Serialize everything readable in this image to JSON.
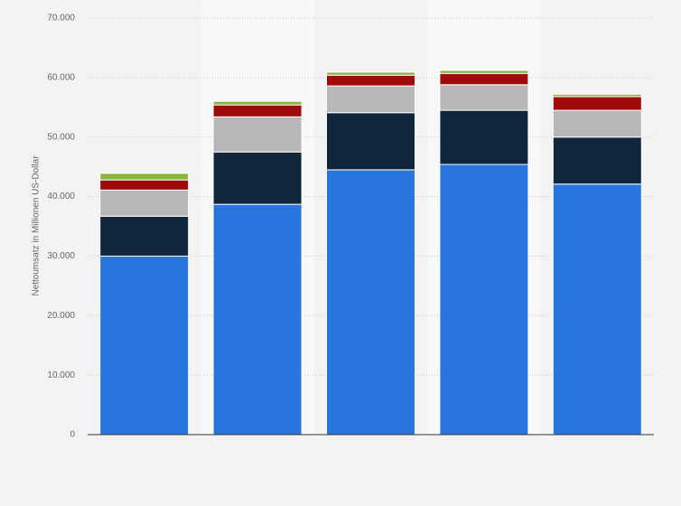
{
  "chart_data": {
    "type": "stacked-bar",
    "y_label": "Nettoumsatz in Millionen US-Dollar",
    "categories": [
      null,
      null,
      null,
      null,
      null
    ],
    "series": [
      {
        "color": "#2876dd",
        "values": [
          30000,
          38700,
          44500,
          45400,
          42100
        ]
      },
      {
        "color": "#10263d",
        "values": [
          6700,
          8800,
          9600,
          9100,
          7900
        ]
      },
      {
        "color": "#b7b7b7",
        "values": [
          4400,
          5900,
          4500,
          4300,
          4500
        ]
      },
      {
        "color": "#a10a0a",
        "values": [
          1700,
          2000,
          1800,
          1900,
          2300
        ]
      },
      {
        "color": "#8bb43c",
        "values": [
          1100,
          600,
          500,
          500,
          400
        ]
      }
    ],
    "ylim": [
      0,
      70000
    ],
    "yticks": [
      0,
      {
        "value": 10000,
        "label": "10.000"
      },
      {
        "value": 20000,
        "label": "20.000"
      },
      {
        "value": 30000,
        "label": "30.000"
      },
      {
        "value": 40000,
        "label": "40.000"
      },
      {
        "value": 50000,
        "label": "50.000"
      },
      {
        "value": 60000,
        "label": "60.000"
      },
      {
        "value": 70000,
        "label": "70.000"
      }
    ],
    "grid": true
  }
}
